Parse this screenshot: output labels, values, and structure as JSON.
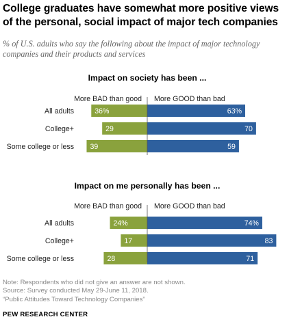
{
  "title": "College graduates have somewhat more positive views of the personal, social impact of major tech companies",
  "subtitle": "% of U.S. adults who say the following about the impact of major technology companies and their products and services",
  "colors": {
    "bad": "#8aa23d",
    "good": "#2e609e",
    "label_text": "#ffffff"
  },
  "chart_data": [
    {
      "type": "bar",
      "title": "Impact on society has been ...",
      "left_header": "More BAD than good",
      "right_header": "More GOOD than bad",
      "categories": [
        "All adults",
        "College+",
        "Some college or less"
      ],
      "series": [
        {
          "name": "More BAD than good",
          "values": [
            36,
            29,
            39
          ],
          "labels": [
            "36%",
            "29",
            "39"
          ]
        },
        {
          "name": "More GOOD than bad",
          "values": [
            63,
            70,
            59
          ],
          "labels": [
            "63%",
            "70",
            "59"
          ]
        }
      ]
    },
    {
      "type": "bar",
      "title": "Impact on me personally has been ...",
      "left_header": "More BAD than good",
      "right_header": "More GOOD than bad",
      "categories": [
        "All adults",
        "College+",
        "Some college or less"
      ],
      "series": [
        {
          "name": "More BAD than good",
          "values": [
            24,
            17,
            28
          ],
          "labels": [
            "24%",
            "17",
            "28"
          ]
        },
        {
          "name": "More GOOD than bad",
          "values": [
            74,
            83,
            71
          ],
          "labels": [
            "74%",
            "83",
            "71"
          ]
        }
      ]
    }
  ],
  "notes": [
    "Note: Respondents who did not give an answer are not shown.",
    "Source: Survey conducted May 29-June 11, 2018.",
    "“Public Attitudes Toward Technology Companies”"
  ],
  "brand": "PEW RESEARCH CENTER"
}
